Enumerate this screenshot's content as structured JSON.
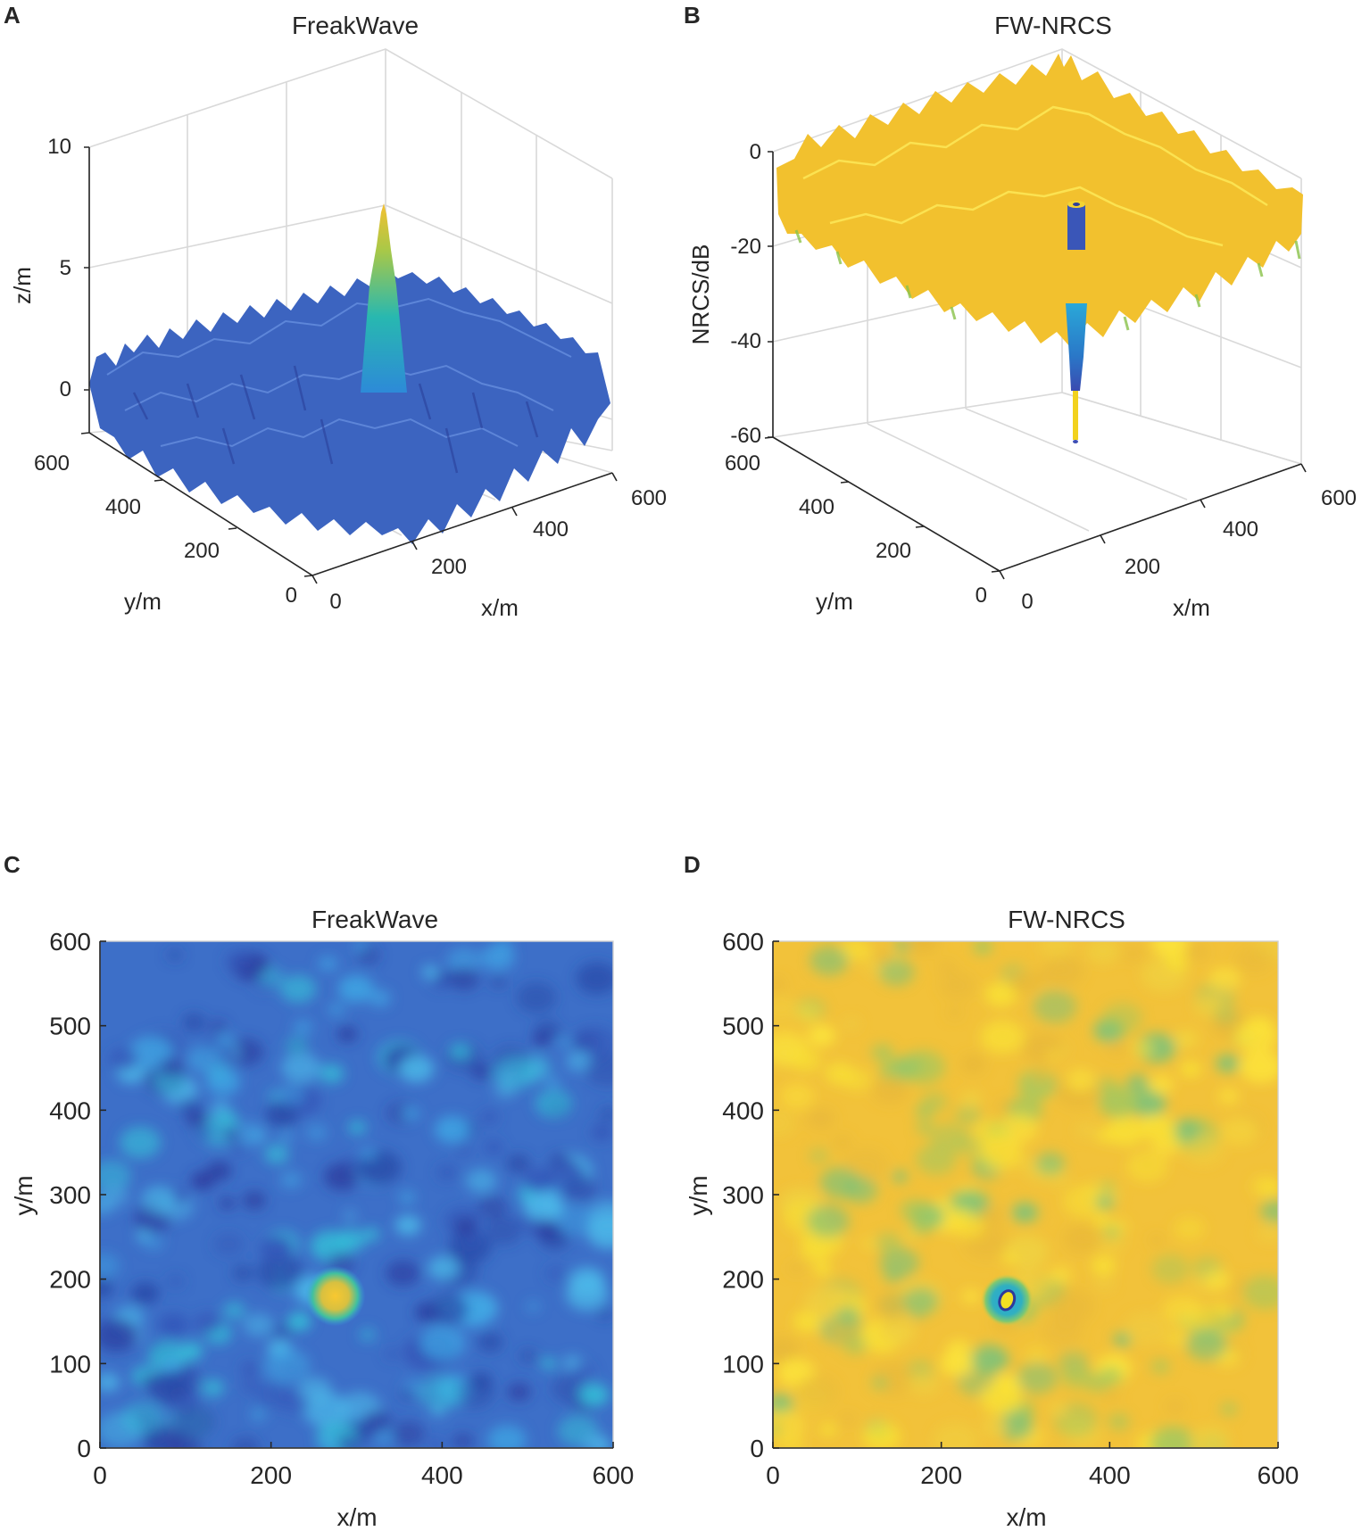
{
  "panels": [
    {
      "letter": "A",
      "title": "FreakWave"
    },
    {
      "letter": "B",
      "title": "FW-NRCS"
    },
    {
      "letter": "C",
      "title": "FreakWave"
    },
    {
      "letter": "D",
      "title": "FW-NRCS"
    }
  ],
  "chart_data": [
    {
      "panel": "A",
      "type": "surface",
      "title": "FreakWave",
      "xlabel": "x/m",
      "ylabel": "y/m",
      "zlabel": "z/m",
      "xlim": [
        0,
        600
      ],
      "ylim": [
        0,
        600
      ],
      "zlim": [
        -1.8,
        10
      ],
      "xticks": [
        0,
        200,
        400,
        600
      ],
      "yticks": [
        0,
        200,
        400,
        600
      ],
      "zticks": [
        0,
        5,
        10
      ],
      "colormap": "parula",
      "freak_wave": {
        "x": 270,
        "y": 180,
        "peak_z": 7.3
      },
      "background_amplitude_m": 1.0
    },
    {
      "panel": "B",
      "type": "surface",
      "title": "FW-NRCS",
      "xlabel": "x/m",
      "ylabel": "y/m",
      "zlabel": "NRCS/dB",
      "xlim": [
        0,
        600
      ],
      "ylim": [
        0,
        600
      ],
      "zlim": [
        -60,
        3
      ],
      "xticks": [
        0,
        200,
        400,
        600
      ],
      "yticks": [
        0,
        200,
        400,
        600
      ],
      "zticks": [
        0,
        -20,
        -40,
        -60
      ],
      "colormap": "parula",
      "freak_wave": {
        "x": 270,
        "y": 180,
        "min_db": -60
      },
      "background_level_db": -8
    },
    {
      "panel": "C",
      "type": "heatmap",
      "title": "FreakWave",
      "xlabel": "x/m",
      "ylabel": "y/m",
      "xlim": [
        0,
        600
      ],
      "ylim": [
        0,
        600
      ],
      "xticks": [
        0,
        200,
        400,
        600
      ],
      "yticks": [
        0,
        100,
        200,
        300,
        400,
        500,
        600
      ],
      "colormap": "parula",
      "hotspot": {
        "x": 275,
        "y": 180
      }
    },
    {
      "panel": "D",
      "type": "heatmap",
      "title": "FW-NRCS",
      "xlabel": "x/m",
      "ylabel": "y/m",
      "xlim": [
        0,
        600
      ],
      "ylim": [
        0,
        600
      ],
      "xticks": [
        0,
        200,
        400,
        600
      ],
      "yticks": [
        0,
        100,
        200,
        300,
        400,
        500,
        600
      ],
      "colormap": "parula",
      "hotspot": {
        "x": 278,
        "y": 175
      }
    }
  ]
}
